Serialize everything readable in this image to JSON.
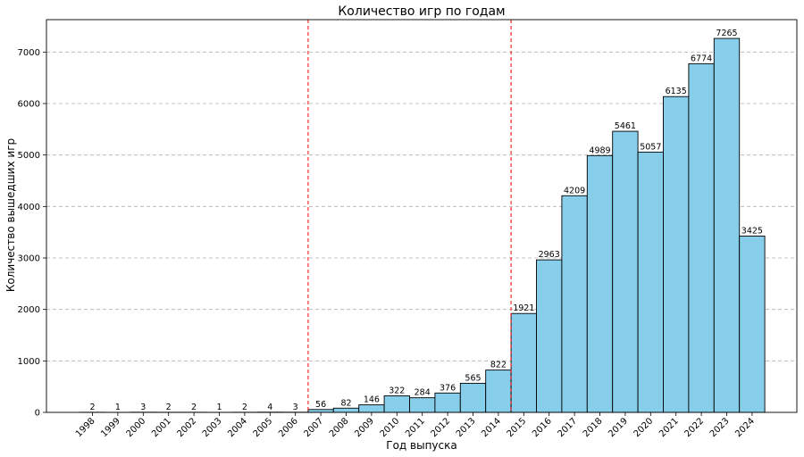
{
  "chart_data": {
    "type": "bar",
    "title": "Количество игр по годам",
    "xlabel": "Год выпуска",
    "ylabel": "Количество вышедших игр",
    "categories": [
      "1998",
      "1999",
      "2000",
      "2001",
      "2002",
      "2003",
      "2004",
      "2005",
      "2006",
      "2007",
      "2008",
      "2009",
      "2010",
      "2011",
      "2012",
      "2013",
      "2014",
      "2015",
      "2016",
      "2017",
      "2018",
      "2019",
      "2020",
      "2021",
      "2022",
      "2023",
      "2024"
    ],
    "values": [
      2,
      1,
      3,
      2,
      2,
      1,
      2,
      4,
      3,
      56,
      82,
      146,
      322,
      284,
      376,
      565,
      822,
      1921,
      2963,
      4209,
      4989,
      5461,
      5057,
      6135,
      6774,
      7265,
      3425
    ],
    "ylim": [
      0,
      7630
    ],
    "yticks": [
      0,
      1000,
      2000,
      3000,
      4000,
      5000,
      6000,
      7000
    ],
    "grid": true,
    "reference_lines_x": [
      2006.5,
      2014.5
    ],
    "colors": {
      "bar_fill": "#87ceeb",
      "bar_edge": "#000000",
      "reference_line": "#ff0000"
    }
  }
}
